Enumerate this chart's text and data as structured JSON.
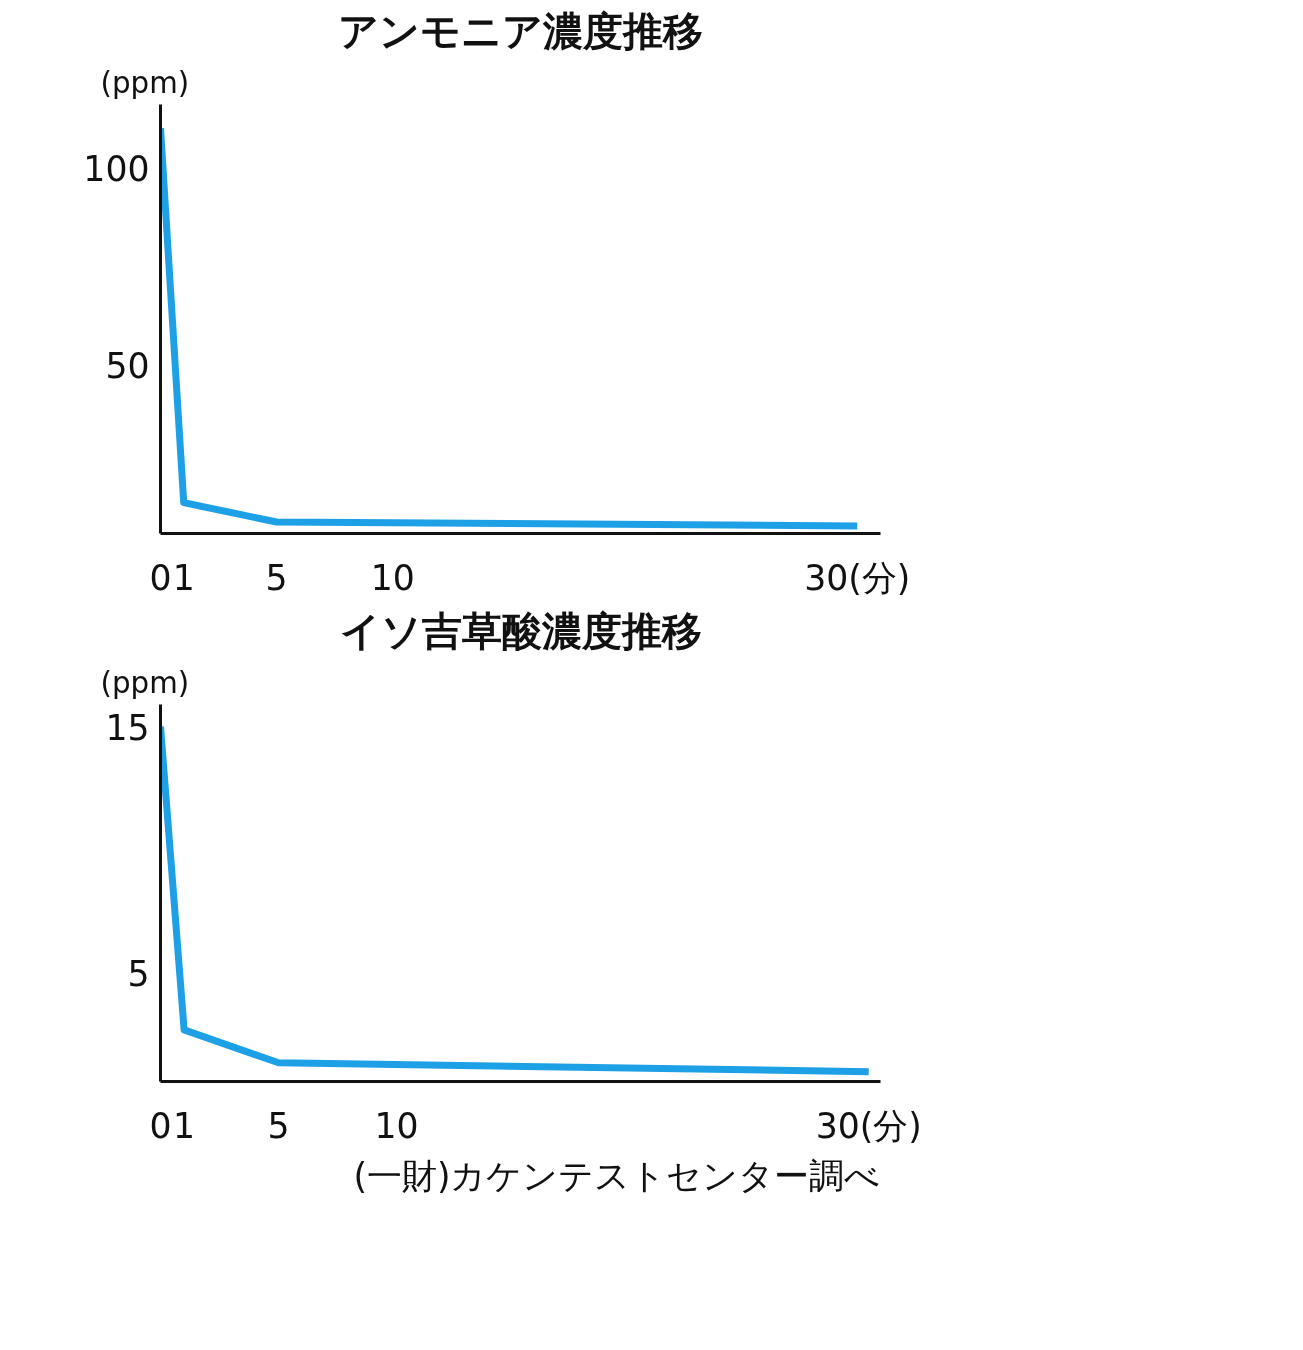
{
  "chart_data": [
    {
      "type": "line",
      "title": "アンモニア濃度推移",
      "ylabel": "(ppm)",
      "x": [
        0,
        1,
        5,
        30
      ],
      "series": [
        {
          "color": "#1ea0e6",
          "values": [
            110,
            15.3,
            10.4,
            9.4
          ]
        }
      ],
      "xlim": [
        0,
        31
      ],
      "xticks": [
        0,
        1,
        5,
        10,
        {
          "value": 30,
          "label": "30(分)"
        }
      ],
      "ylim": [
        7.5,
        116
      ],
      "yticks": [
        50,
        100
      ]
    },
    {
      "type": "line",
      "title": "イソ吉草酸濃度推移",
      "ylabel": "(ppm)",
      "x": [
        0,
        1,
        5,
        30
      ],
      "series": [
        {
          "color": "#1ea0e6",
          "values": [
            15,
            2.67,
            1.33,
            0.97
          ]
        }
      ],
      "xlim": [
        0,
        30.5
      ],
      "xticks": [
        0,
        1,
        5,
        10,
        {
          "value": 30,
          "label": "30(分)"
        }
      ],
      "ylim": [
        0.57,
        15.9
      ],
      "yticks": [
        5,
        15
      ],
      "annotations": [
        "(一財)カケンテストセンター調べ"
      ]
    }
  ]
}
